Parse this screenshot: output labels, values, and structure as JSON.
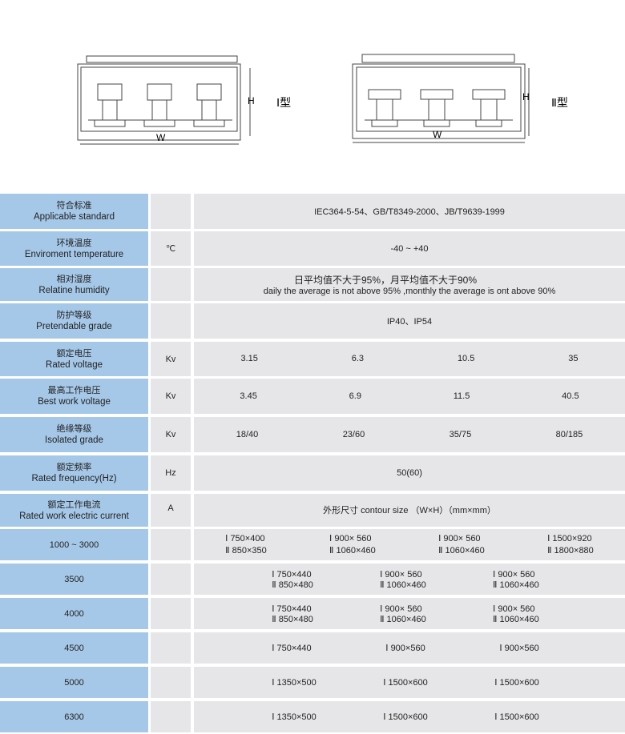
{
  "diagram": {
    "height_label": "H",
    "width_label": "W",
    "type1": "Ⅰ型",
    "type2": "Ⅱ型"
  },
  "rows": [
    {
      "cn": "符合标准",
      "en": "Applicable standard",
      "unit": "",
      "value": "IEC364-5-54、GB/T8349-2000、JB/T9639-1999"
    },
    {
      "cn": "环境温度",
      "en": "Enviroment temperature",
      "unit": "℃",
      "value": "-40 ~ +40"
    },
    {
      "cn": "相对湿度",
      "en": "Relatine humidity",
      "unit": "",
      "value": "日平均值不大于95%，月平均值不大于90%",
      "value2": "daily the average is not above 95% ,monthly the average is ont above 90%"
    },
    {
      "cn": "防护等级",
      "en": "Pretendable grade",
      "unit": "",
      "value": "IP40、IP54"
    },
    {
      "cn": "额定电压",
      "en": "Rated voltage",
      "unit": "Kv",
      "cols": [
        "3.15",
        "6.3",
        "10.5",
        "35"
      ]
    },
    {
      "cn": "最高工作电压",
      "en": "Best work voltage",
      "unit": "Kv",
      "cols": [
        "3.45",
        "6.9",
        "11.5",
        "40.5"
      ]
    },
    {
      "cn": "绝缘等级",
      "en": "Isolated grade",
      "unit": "Kv",
      "cols": [
        "18/40",
        "23/60",
        "35/75",
        "80/185"
      ]
    },
    {
      "cn": "额定频率",
      "en": "Rated frequency(Hz)",
      "unit": "Hz",
      "value": "50(60)"
    },
    {
      "cn": "额定工作电流",
      "en": "Rated work electric current",
      "unit": "A",
      "value": "外形尺寸 contour size （W×H）（mm×mm）"
    }
  ],
  "currents": [
    {
      "current": "1000 ~ 3000",
      "sizes": [
        [
          "Ⅰ 750×400",
          "Ⅱ 850×350"
        ],
        [
          "Ⅰ 900× 560",
          "Ⅱ 1060×460"
        ],
        [
          "Ⅰ 900× 560",
          "Ⅱ 1060×460"
        ],
        [
          "Ⅰ 1500×920",
          "Ⅱ 1800×880"
        ]
      ]
    },
    {
      "current": "3500",
      "sizes": [
        [
          "Ⅰ 750×440",
          "Ⅱ 850×480"
        ],
        [
          "Ⅰ 900× 560",
          "Ⅱ 1060×460"
        ],
        [
          "Ⅰ 900× 560",
          "Ⅱ 1060×460"
        ]
      ]
    },
    {
      "current": "4000",
      "sizes": [
        [
          "Ⅰ 750×440",
          "Ⅱ 850×480"
        ],
        [
          "Ⅰ 900× 560",
          "Ⅱ 1060×460"
        ],
        [
          "Ⅰ 900× 560",
          "Ⅱ 1060×460"
        ]
      ]
    },
    {
      "current": "4500",
      "sizes": [
        [
          "Ⅰ 750×440"
        ],
        [
          "Ⅰ 900×560"
        ],
        [
          "Ⅰ 900×560"
        ]
      ]
    },
    {
      "current": "5000",
      "sizes": [
        [
          "Ⅰ 1350×500"
        ],
        [
          "Ⅰ 1500×600"
        ],
        [
          "Ⅰ 1500×600"
        ]
      ]
    },
    {
      "current": "6300",
      "sizes": [
        [
          "Ⅰ 1350×500"
        ],
        [
          "Ⅰ 1500×600"
        ],
        [
          "Ⅰ 1500×600"
        ]
      ]
    }
  ]
}
